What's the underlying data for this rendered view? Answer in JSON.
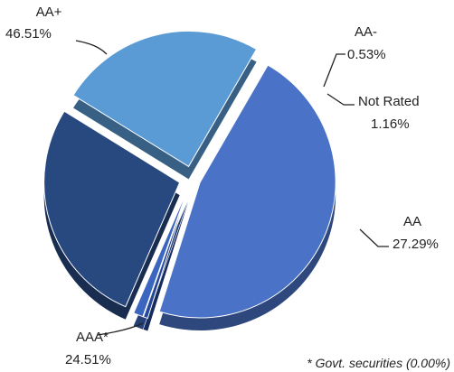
{
  "chart_data": {
    "type": "pie",
    "slices": [
      {
        "name": "AA+",
        "value": 46.51,
        "label": "46.51%",
        "color": "#4a73c8"
      },
      {
        "name": "AA-",
        "value": 0.53,
        "label": "0.53%",
        "color": "#24479a"
      },
      {
        "name": "Not Rated",
        "value": 1.16,
        "label": "1.16%",
        "color": "#3b66c0"
      },
      {
        "name": "AA",
        "value": 27.29,
        "label": "27.29%",
        "color": "#27497f"
      },
      {
        "name": "AAA*",
        "value": 24.51,
        "label": "24.51%",
        "color": "#5b9bd5"
      }
    ],
    "footnote": "* Govt. securities (0.00%)"
  }
}
